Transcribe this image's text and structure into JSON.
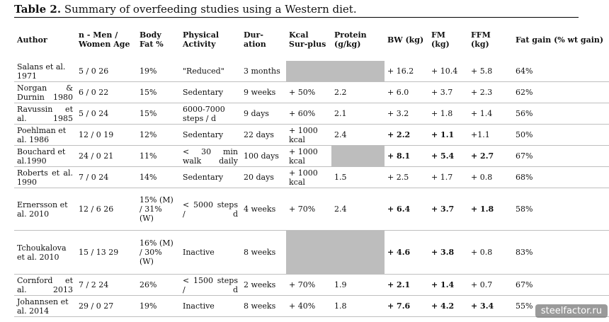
{
  "caption": {
    "label": "Table 2.",
    "text": "Summary of overfeeding studies using a Western diet."
  },
  "headers": [
    "Author",
    "n - Men / Women Age",
    "Body Fat %",
    "Physical Activity",
    "Dur-ation",
    "Kcal Sur-plus",
    "Protein (g/kg)",
    "BW (kg)",
    "FM (kg)",
    "FFM (kg)",
    "Fat gain (% wt gain)"
  ],
  "rows": [
    {
      "author": "Salans et al. 1971",
      "n": "5 / 0 26",
      "bodyfat": "19%",
      "activity": "\"Reduced\"",
      "duration": "3 months",
      "kcal": "",
      "protein": "",
      "bw": "+ 16.2",
      "fm": "+ 10.4",
      "ffm": "+ 5.8",
      "fatgain": "64%"
    },
    {
      "author": "Norgan & Durnin 1980",
      "n": "6 / 0 22",
      "bodyfat": "15%",
      "activity": "Sedentary",
      "duration": "9 weeks",
      "kcal": "+ 50%",
      "protein": "2.2",
      "bw": "+ 6.0",
      "fm": "+ 3.7",
      "ffm": "+ 2.3",
      "fatgain": "62%"
    },
    {
      "author": "Ravussin et al. 1985",
      "n": "5 / 0 24",
      "bodyfat": "15%",
      "activity": "6000-7000 steps / d",
      "duration": "9 days",
      "kcal": "+ 60%",
      "protein": "2.1",
      "bw": "+ 3.2",
      "fm": "+ 1.8",
      "ffm": "+ 1.4",
      "fatgain": "56%"
    },
    {
      "author": "Poehlman et al. 1986",
      "n": "12 / 0 19",
      "bodyfat": "12%",
      "activity": "Sedentary",
      "duration": "22 days",
      "kcal": "+ 1000 kcal",
      "protein": "2.4",
      "bw": "+ 2.2",
      "fm": "+ 1.1",
      "ffm": "+1.1",
      "fatgain": "50%"
    },
    {
      "author": "Bouchard et al.1990",
      "n": "24 / 0 21",
      "bodyfat": "11%",
      "activity": "< 30 min walk daily",
      "duration": "100 days",
      "kcal": "+ 1000 kcal",
      "protein": "",
      "bw": "+ 8.1",
      "fm": "+ 5.4",
      "ffm": "+ 2.7",
      "fatgain": "67%"
    },
    {
      "author": "Roberts et al. 1990",
      "n": "7 / 0 24",
      "bodyfat": "14%",
      "activity": "Sedentary",
      "duration": "20 days",
      "kcal": "+ 1000 kcal",
      "protein": "1.5",
      "bw": "+ 2.5",
      "fm": "+ 1.7",
      "ffm": "+ 0.8",
      "fatgain": "68%"
    },
    {
      "author": "Ernersson et al. 2010",
      "n": "12 / 6 26",
      "bodyfat": "15% (M) / 31% (W)",
      "activity": "< 5000 steps / d",
      "duration": "4 weeks",
      "kcal": "+ 70%",
      "protein": "2.4",
      "bw": "+ 6.4",
      "fm": "+ 3.7",
      "ffm": "+ 1.8",
      "fatgain": "58%"
    },
    {
      "author": "Tchoukalova et al. 2010",
      "n": "15 / 13 29",
      "bodyfat": "16% (M) / 30% (W)",
      "activity": "Inactive",
      "duration": "8 weeks",
      "kcal": "",
      "protein": "",
      "bw": "+ 4.6",
      "fm": "+ 3.8",
      "ffm": "+ 0.8",
      "fatgain": "83%"
    },
    {
      "author": "Cornford et al. 2013",
      "n": "7 / 2 24",
      "bodyfat": "26%",
      "activity": "< 1500 steps / d",
      "duration": "2 weeks",
      "kcal": "+ 70%",
      "protein": "1.9",
      "bw": "+ 2.1",
      "fm": "+ 1.4",
      "ffm": "+ 0.7",
      "fatgain": "67%"
    },
    {
      "author": "Johannsen et al. 2014",
      "n": "29 / 0 27",
      "bodyfat": "19%",
      "activity": "Inactive",
      "duration": "8 weeks",
      "kcal": "+ 40%",
      "protein": "1.8",
      "bw": "+ 7.6",
      "fm": "+ 4.2",
      "ffm": "+ 3.4",
      "fatgain": "55%"
    }
  ],
  "watermark": "steelfactor.ru"
}
